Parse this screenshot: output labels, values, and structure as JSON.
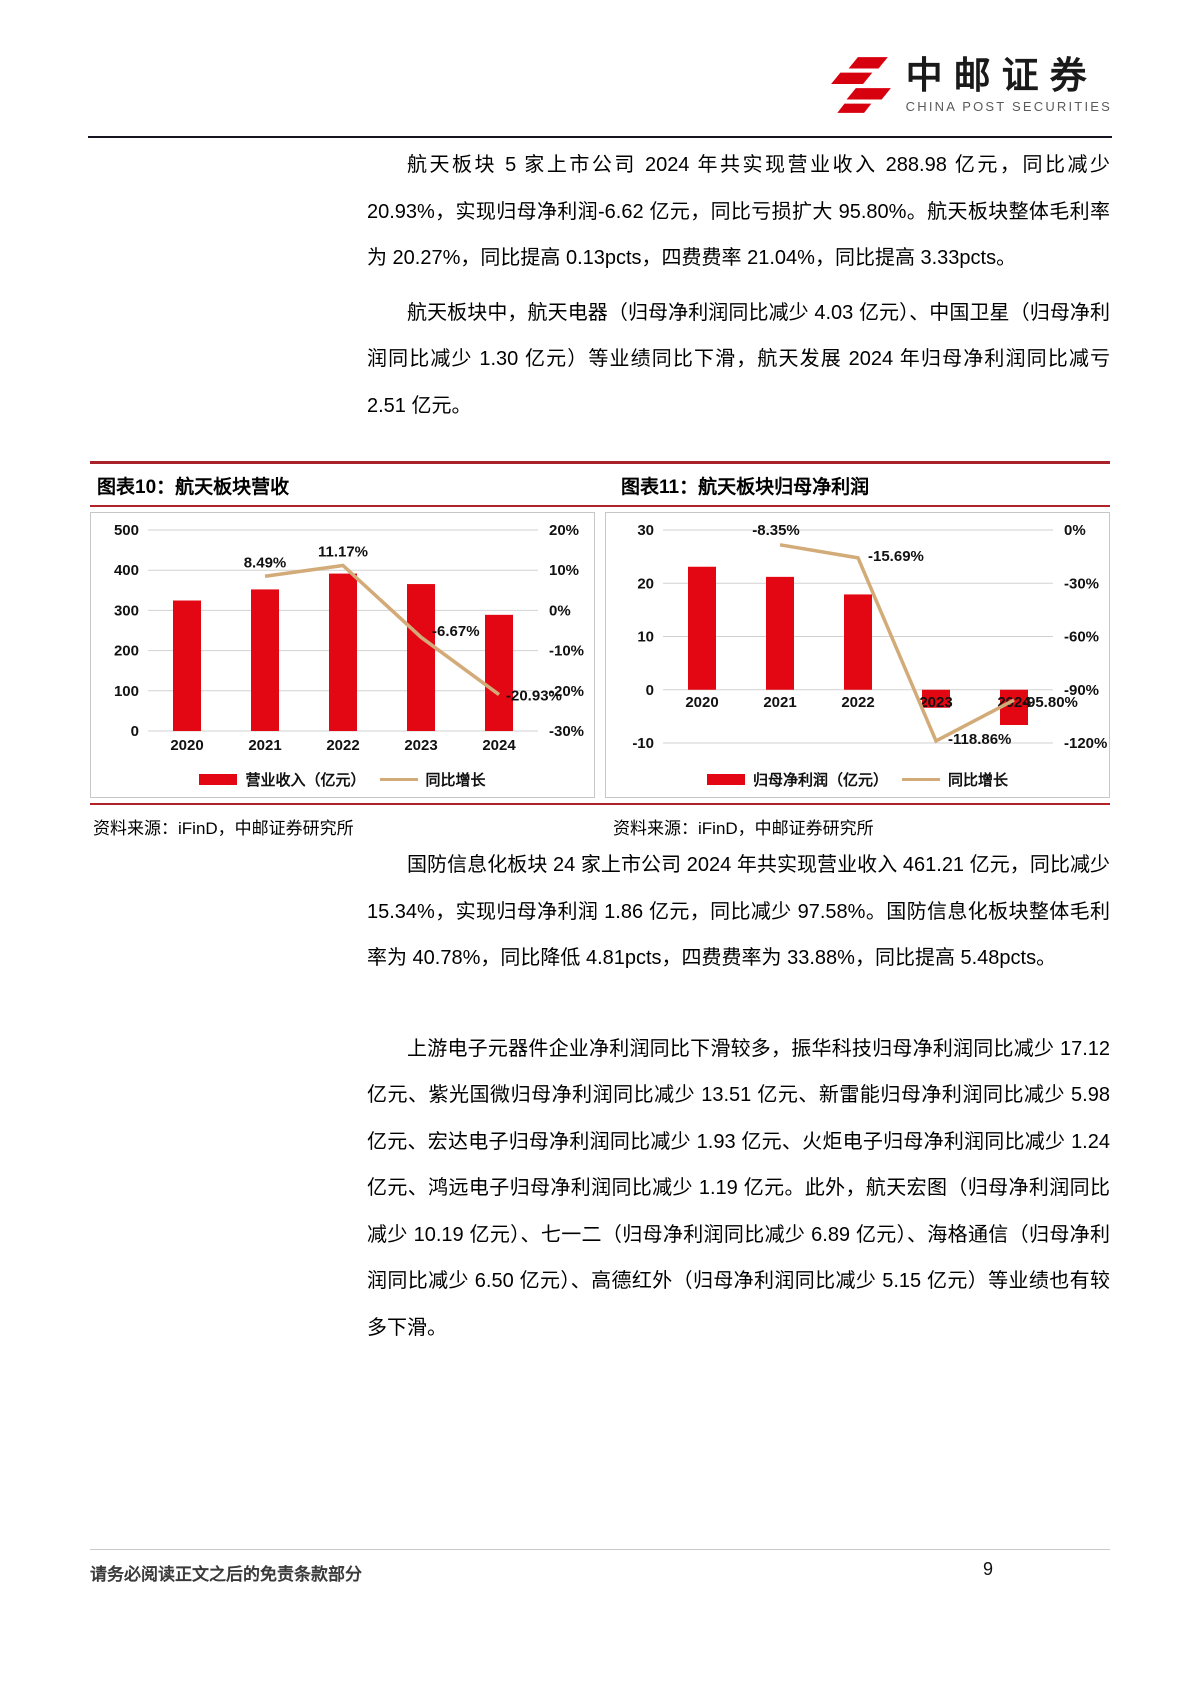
{
  "header": {
    "logo_cn": "中邮证券",
    "logo_en": "CHINA POST SECURITIES"
  },
  "paragraphs": [
    "航天板块 5 家上市公司 2024 年共实现营业收入 288.98 亿元，同比减少 20.93%，实现归母净利润-6.62 亿元，同比亏损扩大 95.80%。航天板块整体毛利率为 20.27%，同比提高 0.13pcts，四费费率 21.04%，同比提高 3.33pcts。",
    "航天板块中，航天电器（归母净利润同比减少 4.03 亿元）、中国卫星（归母净利润同比减少 1.30 亿元）等业绩同比下滑，航天发展 2024 年归母净利润同比减亏 2.51 亿元。",
    "国防信息化板块 24 家上市公司 2024 年共实现营业收入 461.21 亿元，同比减少 15.34%，实现归母净利润 1.86 亿元，同比减少 97.58%。国防信息化板块整体毛利率为 40.78%，同比降低 4.81pcts，四费费率为 33.88%，同比提高 5.48pcts。",
    "上游电子元器件企业净利润同比下滑较多，振华科技归母净利润同比减少 17.12 亿元、紫光国微归母净利润同比减少 13.51 亿元、新雷能归母净利润同比减少 5.98 亿元、宏达电子归母净利润同比减少 1.93 亿元、火炬电子归母净利润同比减少 1.24 亿元、鸿远电子归母净利润同比减少 1.19 亿元。此外，航天宏图（归母净利润同比减少 10.19 亿元）、七一二（归母净利润同比减少 6.89 亿元）、海格通信（归母净利润同比减少 6.50 亿元）、高德红外（归母净利润同比减少 5.15 亿元）等业绩也有较多下滑。"
  ],
  "chart_data": [
    {
      "type": "bar",
      "title": "图表10：航天板块营收",
      "source": "资料来源：iFinD，中邮证券研究所",
      "categories": [
        "2020",
        "2021",
        "2022",
        "2023",
        "2024"
      ],
      "series": [
        {
          "name": "营业收入（亿元）",
          "type": "bar",
          "axis": "left",
          "values": [
            324.6,
            352.2,
            391.6,
            365.5,
            288.98
          ]
        },
        {
          "name": "同比增长",
          "type": "line",
          "axis": "right",
          "values": [
            null,
            8.49,
            11.17,
            -6.67,
            -20.93
          ],
          "labels": [
            null,
            "8.49%",
            "11.17%",
            "-6.67%",
            "-20.93%"
          ]
        }
      ],
      "left_axis": {
        "min": 0,
        "max": 500,
        "ticks": [
          500,
          400,
          300,
          200,
          100,
          0
        ],
        "unit": ""
      },
      "right_axis": {
        "min": -30,
        "max": 20,
        "ticks": [
          20,
          10,
          0,
          -10,
          -20,
          -30
        ],
        "unit": "%"
      },
      "grid": true,
      "legend_position": "bottom"
    },
    {
      "type": "bar",
      "title": "图表11：航天板块归母净利润",
      "source": "资料来源：iFinD，中邮证券研究所",
      "categories": [
        "2020",
        "2021",
        "2022",
        "2023",
        "2024"
      ],
      "series": [
        {
          "name": "归母净利润（亿元）",
          "type": "bar",
          "axis": "left",
          "values": [
            23.1,
            21.2,
            17.9,
            -3.38,
            -6.62
          ]
        },
        {
          "name": "同比增长",
          "type": "line",
          "axis": "right",
          "values": [
            null,
            -8.35,
            -15.69,
            -118.86,
            -95.8
          ],
          "labels": [
            null,
            "-8.35%",
            "-15.69%",
            "-118.86%",
            "-95.80%"
          ]
        }
      ],
      "left_axis": {
        "min": -10,
        "max": 30,
        "ticks": [
          30,
          20,
          10,
          0,
          -10
        ],
        "unit": ""
      },
      "right_axis": {
        "min": -120,
        "max": 0,
        "ticks": [
          0,
          -30,
          -60,
          -90,
          -120
        ],
        "unit": "%"
      },
      "grid": true,
      "legend_position": "bottom"
    }
  ],
  "footer": {
    "disclaimer": "请务必阅读正文之后的免责条款部分",
    "page_number": "9"
  },
  "colors": {
    "bar_red": "#e30613",
    "line_tan": "#d2ab78",
    "rule_red": "#b02329",
    "header_rule": "#15151f"
  }
}
